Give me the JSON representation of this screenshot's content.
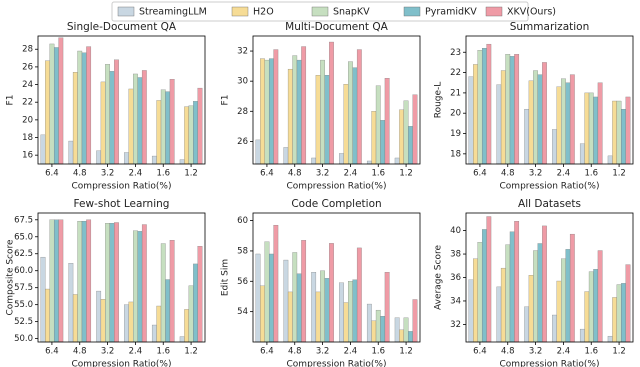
{
  "legend": [
    {
      "name": "StreamingLLM",
      "color": "#c9d7e2"
    },
    {
      "name": "H2O",
      "color": "#f6dc96"
    },
    {
      "name": "SnapKV",
      "color": "#c6dfc0"
    },
    {
      "name": "PyramidKV",
      "color": "#80bfca"
    },
    {
      "name": "XKV(Ours)",
      "color": "#ef9ba6"
    }
  ],
  "chart_data": [
    {
      "type": "bar",
      "title": "Single-Document QA",
      "xlabel": "Compression Ratio(%)",
      "ylabel": "F1",
      "categories": [
        "6.4",
        "4.8",
        "3.2",
        "2.4",
        "1.6",
        "1.2"
      ],
      "series": [
        {
          "values": [
            18.3,
            17.6,
            16.5,
            16.3,
            15.9,
            15.5
          ]
        },
        {
          "values": [
            26.7,
            25.4,
            24.3,
            23.5,
            22.2,
            21.5
          ]
        },
        {
          "values": [
            28.6,
            27.8,
            26.3,
            25.2,
            23.4,
            21.6
          ]
        },
        {
          "values": [
            28.2,
            27.6,
            25.5,
            24.8,
            23.2,
            22.1
          ]
        },
        {
          "values": [
            29.3,
            28.3,
            26.8,
            25.6,
            24.6,
            23.6
          ]
        }
      ],
      "ylim": [
        15,
        29.5
      ],
      "yticks": [
        16,
        18,
        20,
        22,
        24,
        26,
        28
      ]
    },
    {
      "type": "bar",
      "title": "Multi-Document QA",
      "xlabel": "Compression Ratio(%)",
      "ylabel": "F1",
      "categories": [
        "6.4",
        "4.8",
        "3.2",
        "2.4",
        "1.6",
        "1.2"
      ],
      "series": [
        {
          "values": [
            26.1,
            25.6,
            24.9,
            25.2,
            24.7,
            24.9
          ]
        },
        {
          "values": [
            31.5,
            30.8,
            30.4,
            29.8,
            28.0,
            28.1
          ]
        },
        {
          "values": [
            31.4,
            31.7,
            31.4,
            31.3,
            29.7,
            28.7
          ]
        },
        {
          "values": [
            31.5,
            31.4,
            30.4,
            30.9,
            27.4,
            27.0
          ]
        },
        {
          "values": [
            32.1,
            32.3,
            32.6,
            32.1,
            30.2,
            29.1
          ]
        }
      ],
      "ylim": [
        24.5,
        33
      ],
      "yticks": [
        26,
        28,
        30,
        32
      ]
    },
    {
      "type": "bar",
      "title": "Summarization",
      "xlabel": "Compression Ratio(%)",
      "ylabel": "Rouge-L",
      "categories": [
        "6.4",
        "4.8",
        "3.2",
        "2.4",
        "1.6",
        "1.2"
      ],
      "series": [
        {
          "values": [
            21.8,
            21.4,
            20.2,
            19.2,
            18.5,
            17.9
          ]
        },
        {
          "values": [
            22.4,
            22.1,
            21.6,
            21.3,
            21.0,
            20.6
          ]
        },
        {
          "values": [
            23.1,
            22.9,
            22.1,
            21.7,
            21.0,
            20.6
          ]
        },
        {
          "values": [
            23.2,
            22.8,
            21.9,
            21.5,
            20.8,
            20.2
          ]
        },
        {
          "values": [
            23.4,
            22.9,
            22.5,
            21.9,
            21.5,
            20.8
          ]
        }
      ],
      "ylim": [
        17.5,
        23.8
      ],
      "yticks": [
        18,
        19,
        20,
        21,
        22,
        23
      ]
    },
    {
      "type": "bar",
      "title": "Few-shot Learning",
      "xlabel": "Compression Ratio(%)",
      "ylabel": "Composite Score",
      "categories": [
        "6.4",
        "4.8",
        "3.2",
        "2.4",
        "1.6",
        "1.2"
      ],
      "series": [
        {
          "values": [
            62.0,
            61.1,
            57.0,
            55.0,
            52.0,
            50.3
          ]
        },
        {
          "values": [
            57.3,
            56.5,
            55.8,
            55.4,
            54.8,
            54.3
          ]
        },
        {
          "values": [
            67.5,
            67.3,
            67.0,
            65.9,
            64.0,
            57.8
          ]
        },
        {
          "values": [
            67.5,
            67.3,
            67.0,
            65.8,
            58.7,
            61.0
          ]
        },
        {
          "values": [
            67.5,
            67.5,
            67.1,
            66.8,
            64.5,
            63.6
          ]
        }
      ],
      "ylim": [
        49.5,
        68.5
      ],
      "yticks": [
        {
          "value": 50,
          "label": "50.0"
        },
        52.5,
        {
          "value": 55,
          "label": "55.0"
        },
        57.5,
        {
          "value": 60,
          "label": "60.0"
        },
        62.5,
        {
          "value": 65,
          "label": "65.0"
        },
        67.5
      ]
    },
    {
      "type": "bar",
      "title": "Code Completion",
      "xlabel": "Compression Ratio(%)",
      "ylabel": "Edit Sim",
      "categories": [
        "6.4",
        "4.8",
        "3.2",
        "2.4",
        "1.6",
        "1.2"
      ],
      "series": [
        {
          "values": [
            57.8,
            57.4,
            56.6,
            55.9,
            54.5,
            53.6
          ]
        },
        {
          "values": [
            55.7,
            55.3,
            55.3,
            54.6,
            53.4,
            52.8
          ]
        },
        {
          "values": [
            58.6,
            57.9,
            56.7,
            56.0,
            54.1,
            53.6
          ]
        },
        {
          "values": [
            57.8,
            56.5,
            56.2,
            56.1,
            53.7,
            52.7
          ]
        },
        {
          "values": [
            59.7,
            58.7,
            58.5,
            58.2,
            56.6,
            54.8
          ]
        }
      ],
      "ylim": [
        52,
        60.5
      ],
      "yticks": [
        54,
        56,
        58,
        60
      ]
    },
    {
      "type": "bar",
      "title": "All Datasets",
      "xlabel": "Compression Ratio(%)",
      "ylabel": "Average Score",
      "categories": [
        "6.4",
        "4.8",
        "3.2",
        "2.4",
        "1.6",
        "1.2"
      ],
      "series": [
        {
          "values": [
            35.8,
            35.2,
            33.5,
            32.8,
            31.6,
            31.0
          ]
        },
        {
          "values": [
            37.6,
            36.8,
            36.2,
            35.7,
            34.8,
            34.3
          ]
        },
        {
          "values": [
            39.0,
            38.8,
            38.3,
            37.6,
            36.5,
            35.4
          ]
        },
        {
          "values": [
            40.1,
            39.9,
            38.9,
            38.4,
            36.7,
            35.5
          ]
        },
        {
          "values": [
            41.2,
            40.8,
            40.4,
            39.7,
            38.3,
            37.1
          ]
        }
      ],
      "ylim": [
        30.5,
        41.5
      ],
      "yticks": [
        32,
        34,
        36,
        38,
        40
      ]
    }
  ]
}
